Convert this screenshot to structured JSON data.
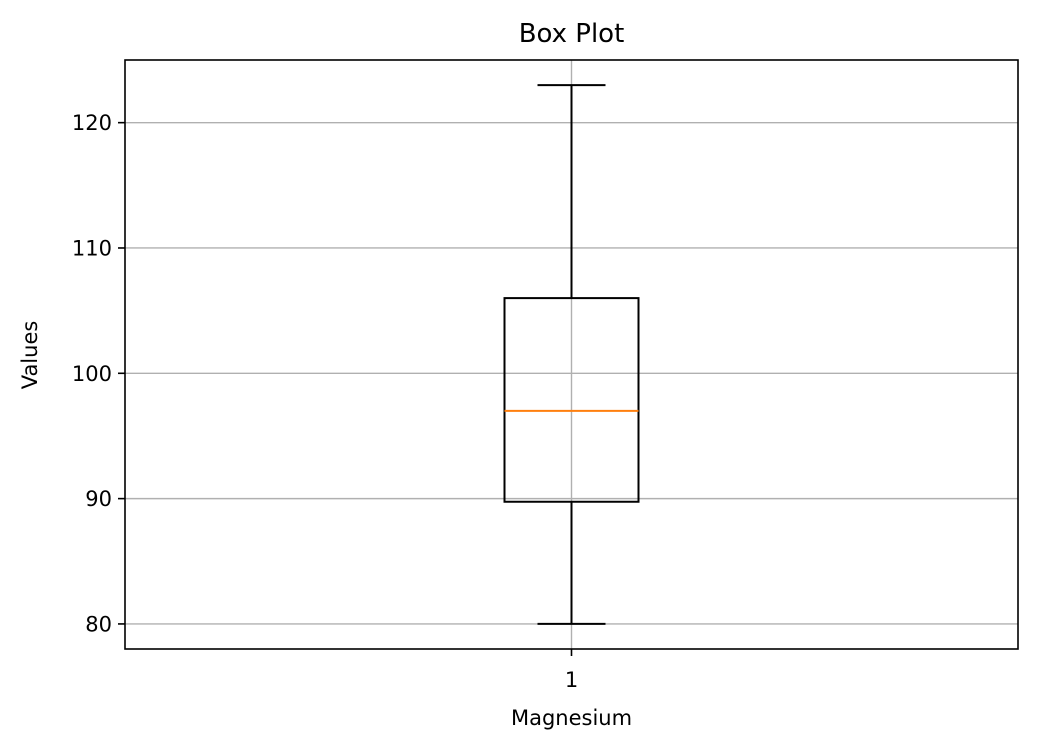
{
  "chart_data": {
    "type": "box",
    "title": "Box Plot",
    "xlabel": "Magnesium",
    "ylabel": "Values",
    "categories": [
      "1"
    ],
    "ylim": [
      78,
      125
    ],
    "yticks": [
      "80",
      "90",
      "100",
      "110",
      "120"
    ],
    "grid": true,
    "boxes": [
      {
        "label": "1",
        "whisker_low": 80,
        "q1": 89.75,
        "median": 97,
        "q3": 106,
        "whisker_high": 123
      }
    ],
    "colors": {
      "box": "#000000",
      "median": "#ff7f0e",
      "grid": "#b0b0b0",
      "frame": "#000000"
    }
  }
}
